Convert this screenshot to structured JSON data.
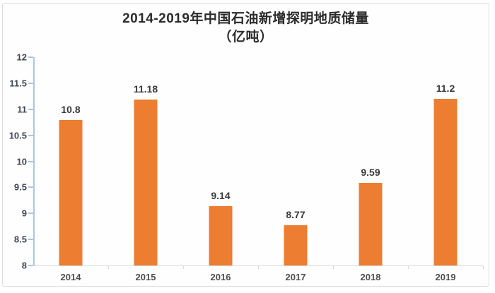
{
  "window": {
    "background_color": "#fefefe",
    "border_color": "#dcdcdc"
  },
  "chart_data": {
    "type": "bar",
    "title": "2014-2019年中国石油新增探明地质储量",
    "title_line2": "（亿吨）",
    "categories": [
      "2014",
      "2015",
      "2016",
      "2017",
      "2018",
      "2019"
    ],
    "values": [
      10.8,
      11.18,
      9.14,
      8.77,
      9.59,
      11.2
    ],
    "data_labels": [
      "10.8",
      "11.18",
      "9.14",
      "8.77",
      "9.59",
      "11.2"
    ],
    "xlabel": "",
    "ylabel": "",
    "ylim": [
      8,
      12
    ],
    "ytick_step": 0.5,
    "ytick_labels": [
      "12",
      "11.5",
      "11",
      "10.5",
      "10",
      "9.5",
      "9",
      "8.5",
      "8"
    ],
    "grid": false,
    "legend": "none",
    "colors": {
      "bar_fill": "#ED7D31",
      "y_axis_line": "#A9C6E1",
      "x_axis_line": "#D9D9D9",
      "title_text": "#2b2b2b",
      "ytick_text": "#3f4656",
      "xtick_text": "#4d4d4d",
      "data_label_text": "#3a3a3a"
    }
  }
}
